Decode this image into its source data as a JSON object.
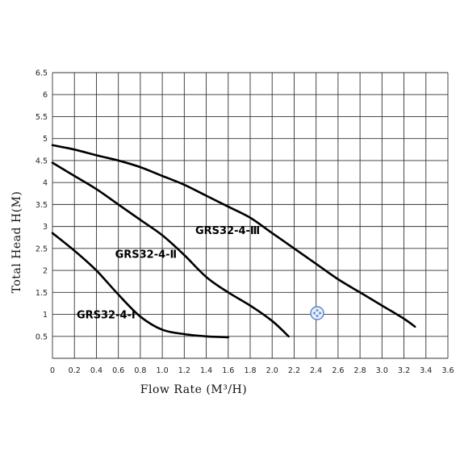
{
  "chart_data": {
    "type": "line",
    "xlabel": "Flow Rate (M³/H)",
    "ylabel": "Total Head H(M)",
    "xlim": [
      0,
      3.6
    ],
    "ylim": [
      0,
      6.5
    ],
    "x_ticks": [
      "0",
      "0.2",
      "0.4",
      "0.6",
      "0.8",
      "1.0",
      "1.2",
      "1.4",
      "1.6",
      "1.8",
      "2.0",
      "2.2",
      "2.4",
      "2.6",
      "2.8",
      "3.0",
      "3.2",
      "3.4",
      "3.6"
    ],
    "y_ticks": [
      "0.5",
      "1",
      "1.5",
      "2",
      "2.5",
      "3",
      "3.5",
      "4",
      "4.5",
      "5",
      "5.5",
      "6",
      "6.5"
    ],
    "grid": true,
    "series": [
      {
        "name": "GRS32-4-Ⅰ",
        "x": [
          0,
          0.2,
          0.4,
          0.6,
          0.8,
          1.0,
          1.2,
          1.4,
          1.6
        ],
        "y": [
          2.85,
          2.45,
          2.0,
          1.45,
          0.95,
          0.65,
          0.55,
          0.5,
          0.48
        ]
      },
      {
        "name": "GRS32-4-Ⅱ",
        "x": [
          0,
          0.2,
          0.4,
          0.6,
          0.8,
          1.0,
          1.2,
          1.4,
          1.6,
          1.8,
          2.0,
          2.15
        ],
        "y": [
          4.45,
          4.15,
          3.85,
          3.5,
          3.15,
          2.8,
          2.35,
          1.85,
          1.5,
          1.2,
          0.85,
          0.5
        ]
      },
      {
        "name": "GRS32-4-Ⅲ",
        "x": [
          0,
          0.2,
          0.4,
          0.6,
          0.8,
          1.0,
          1.2,
          1.4,
          1.6,
          1.8,
          2.0,
          2.2,
          2.4,
          2.6,
          2.8,
          3.0,
          3.2,
          3.3
        ],
        "y": [
          4.85,
          4.75,
          4.62,
          4.5,
          4.35,
          4.15,
          3.95,
          3.7,
          3.45,
          3.2,
          2.85,
          2.5,
          2.15,
          1.8,
          1.5,
          1.2,
          0.9,
          0.72
        ]
      }
    ],
    "curve_labels": [
      {
        "text": "GRS32-4-Ⅰ",
        "x": 0.22,
        "y": 1.0
      },
      {
        "text": "GRS32-4-Ⅱ",
        "x": 0.57,
        "y": 2.38
      },
      {
        "text": "GRS32-4-Ⅲ",
        "x": 1.3,
        "y": 2.92
      }
    ]
  }
}
